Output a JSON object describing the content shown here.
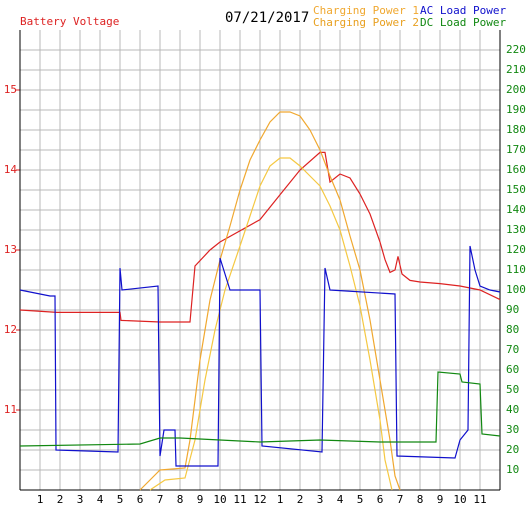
{
  "chart_data": {
    "type": "line",
    "title": "07/21/2017",
    "xlim": [
      0,
      24
    ],
    "xticks": [
      1,
      2,
      3,
      4,
      5,
      6,
      7,
      8,
      9,
      10,
      11,
      12,
      {
        "value": 13,
        "label": "1"
      },
      {
        "value": 14,
        "label": "2"
      },
      {
        "value": 15,
        "label": "3"
      },
      {
        "value": 16,
        "label": "4"
      },
      {
        "value": 17,
        "label": "5"
      },
      {
        "value": 18,
        "label": "6"
      },
      {
        "value": 19,
        "label": "7"
      },
      {
        "value": 20,
        "label": "8"
      },
      {
        "value": 21,
        "label": "9"
      },
      {
        "value": 22,
        "label": "10"
      },
      {
        "value": 23,
        "label": "11"
      }
    ],
    "ylim": [
      10,
      15.75
    ],
    "yticks": [
      11,
      12,
      13,
      14,
      15
    ],
    "y2lim": [
      0,
      230
    ],
    "y2ticks": [
      10,
      20,
      30,
      40,
      50,
      60,
      70,
      80,
      90,
      100,
      110,
      120,
      130,
      140,
      150,
      160,
      170,
      180,
      190,
      200,
      210,
      220
    ],
    "grid": true,
    "series": [
      {
        "name": "Battery Voltage",
        "color": "#dd2222",
        "x": [
          0,
          1.85,
          5,
          5.05,
          7,
          8.5,
          8.75,
          9.5,
          10,
          12,
          13,
          14,
          15,
          15.25,
          15.5,
          16,
          16.5,
          17,
          17.5,
          18,
          18.25,
          18.5,
          18.75,
          18.9,
          19.1,
          19.5,
          20,
          21,
          22,
          23,
          24
        ],
        "values": [
          12.25,
          12.22,
          12.22,
          12.12,
          12.1,
          12.1,
          12.8,
          13.0,
          13.1,
          13.38,
          13.69,
          14.0,
          14.22,
          14.22,
          13.85,
          13.95,
          13.9,
          13.7,
          13.45,
          13.1,
          12.88,
          12.72,
          12.75,
          12.92,
          12.7,
          12.62,
          12.6,
          12.58,
          12.55,
          12.5,
          12.38
        ]
      },
      {
        "name": "Charging Power 1",
        "color": "#f0a830",
        "axis": "y2",
        "x": [
          6,
          6.5,
          7,
          8.25,
          8.5,
          9,
          9.5,
          10,
          10.5,
          11,
          11.5,
          12,
          12.5,
          13,
          13.5,
          14,
          14.5,
          15,
          15.5,
          16,
          16.5,
          17,
          17.5,
          18,
          18.5,
          18.75,
          19
        ],
        "values": [
          0,
          5,
          10,
          11,
          25,
          65,
          95,
          115,
          132,
          150,
          165,
          175,
          184,
          189,
          189,
          187,
          180,
          170,
          157,
          145,
          127,
          110,
          85,
          55,
          25,
          7,
          0
        ]
      },
      {
        "name": "Charging Power 2",
        "color": "#f5c842",
        "axis": "y2",
        "x": [
          6.5,
          7.25,
          8.25,
          8.75,
          9.25,
          9.75,
          10.25,
          11,
          11.5,
          12,
          12.5,
          13,
          13.5,
          14,
          14.5,
          15,
          15.5,
          16,
          16.5,
          17,
          17.5,
          18,
          18.25,
          18.6
        ],
        "values": [
          0,
          5,
          6,
          25,
          55,
          80,
          100,
          122,
          137,
          152,
          162,
          166,
          166,
          162,
          157,
          152,
          142,
          130,
          112,
          92,
          65,
          35,
          15,
          0
        ]
      },
      {
        "name": "AC Load Power",
        "color": "#1010cc",
        "axis": "y2",
        "x": [
          0,
          1.5,
          1.75,
          1.8,
          4.9,
          5,
          5.1,
          6.9,
          7,
          7.2,
          7.75,
          7.8,
          9.9,
          10,
          10.5,
          12,
          12.1,
          15.1,
          15.25,
          15.5,
          18.75,
          18.85,
          21.75,
          22,
          22.4,
          22.5,
          22.75,
          23,
          23.5,
          24
        ],
        "values": [
          100,
          97,
          97,
          20,
          19,
          111,
          100,
          102,
          17,
          30,
          30,
          12,
          12,
          116,
          100,
          100,
          22,
          19,
          111,
          100,
          98,
          17,
          16,
          25,
          30,
          122,
          110,
          102,
          100,
          99
        ]
      },
      {
        "name": "DC Load Power",
        "color": "#118811",
        "axis": "y2",
        "x": [
          0,
          6,
          7,
          8,
          10,
          12,
          15,
          18,
          20.8,
          20.9,
          22,
          22.1,
          23,
          23.1,
          24
        ],
        "values": [
          22,
          23,
          26,
          26,
          25,
          24,
          25,
          24,
          24,
          59,
          58,
          54,
          53,
          28,
          27
        ]
      }
    ]
  }
}
